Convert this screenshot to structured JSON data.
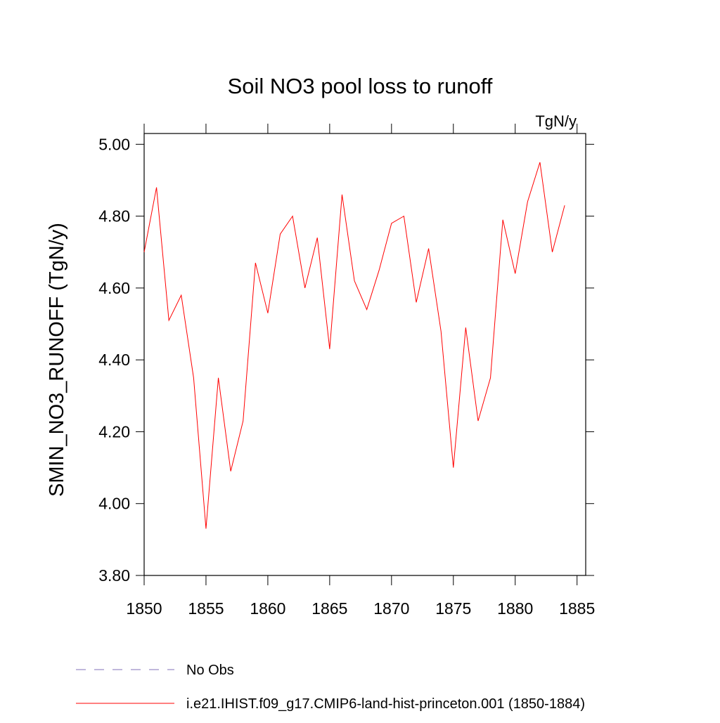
{
  "chart_data": {
    "type": "line",
    "title": "Soil NO3 pool loss to runoff",
    "units": "TgN/y",
    "ylabel": "SMIN_NO3_RUNOFF  (TgN/y)",
    "x": [
      1850,
      1851,
      1852,
      1853,
      1854,
      1855,
      1856,
      1857,
      1858,
      1859,
      1860,
      1861,
      1862,
      1863,
      1864,
      1865,
      1866,
      1867,
      1868,
      1869,
      1870,
      1871,
      1872,
      1873,
      1874,
      1875,
      1876,
      1877,
      1878,
      1879,
      1880,
      1881,
      1882,
      1883,
      1884
    ],
    "series": [
      {
        "name": "i.e21.IHIST.f09_g17.CMIP6-land-hist-princeton.001 (1850-1884)",
        "color": "#ff0000",
        "values": [
          4.7,
          4.88,
          4.51,
          4.58,
          4.35,
          3.93,
          4.35,
          4.09,
          4.23,
          4.67,
          4.53,
          4.75,
          4.8,
          4.6,
          4.74,
          4.43,
          4.86,
          4.62,
          4.54,
          4.65,
          4.78,
          4.8,
          4.56,
          4.71,
          4.48,
          4.1,
          4.49,
          4.23,
          4.35,
          4.79,
          4.64,
          4.84,
          4.95,
          4.7,
          4.83
        ]
      }
    ],
    "reference": {
      "name": "No Obs",
      "color": "#8070b8",
      "dashed": true
    },
    "xlim": [
      1850,
      1885.7
    ],
    "ylim": [
      3.8,
      5.03
    ],
    "xticks": [
      1850,
      1855,
      1860,
      1865,
      1870,
      1875,
      1880,
      1885
    ],
    "yticks": [
      {
        "value": 3.8,
        "label": "3.80"
      },
      {
        "value": 4.0,
        "label": "4.00"
      },
      {
        "value": 4.2,
        "label": "4.20"
      },
      {
        "value": 4.4,
        "label": "4.40"
      },
      {
        "value": 4.6,
        "label": "4.60"
      },
      {
        "value": 4.8,
        "label": "4.80"
      },
      {
        "value": 5.0,
        "label": "5.00"
      }
    ]
  }
}
